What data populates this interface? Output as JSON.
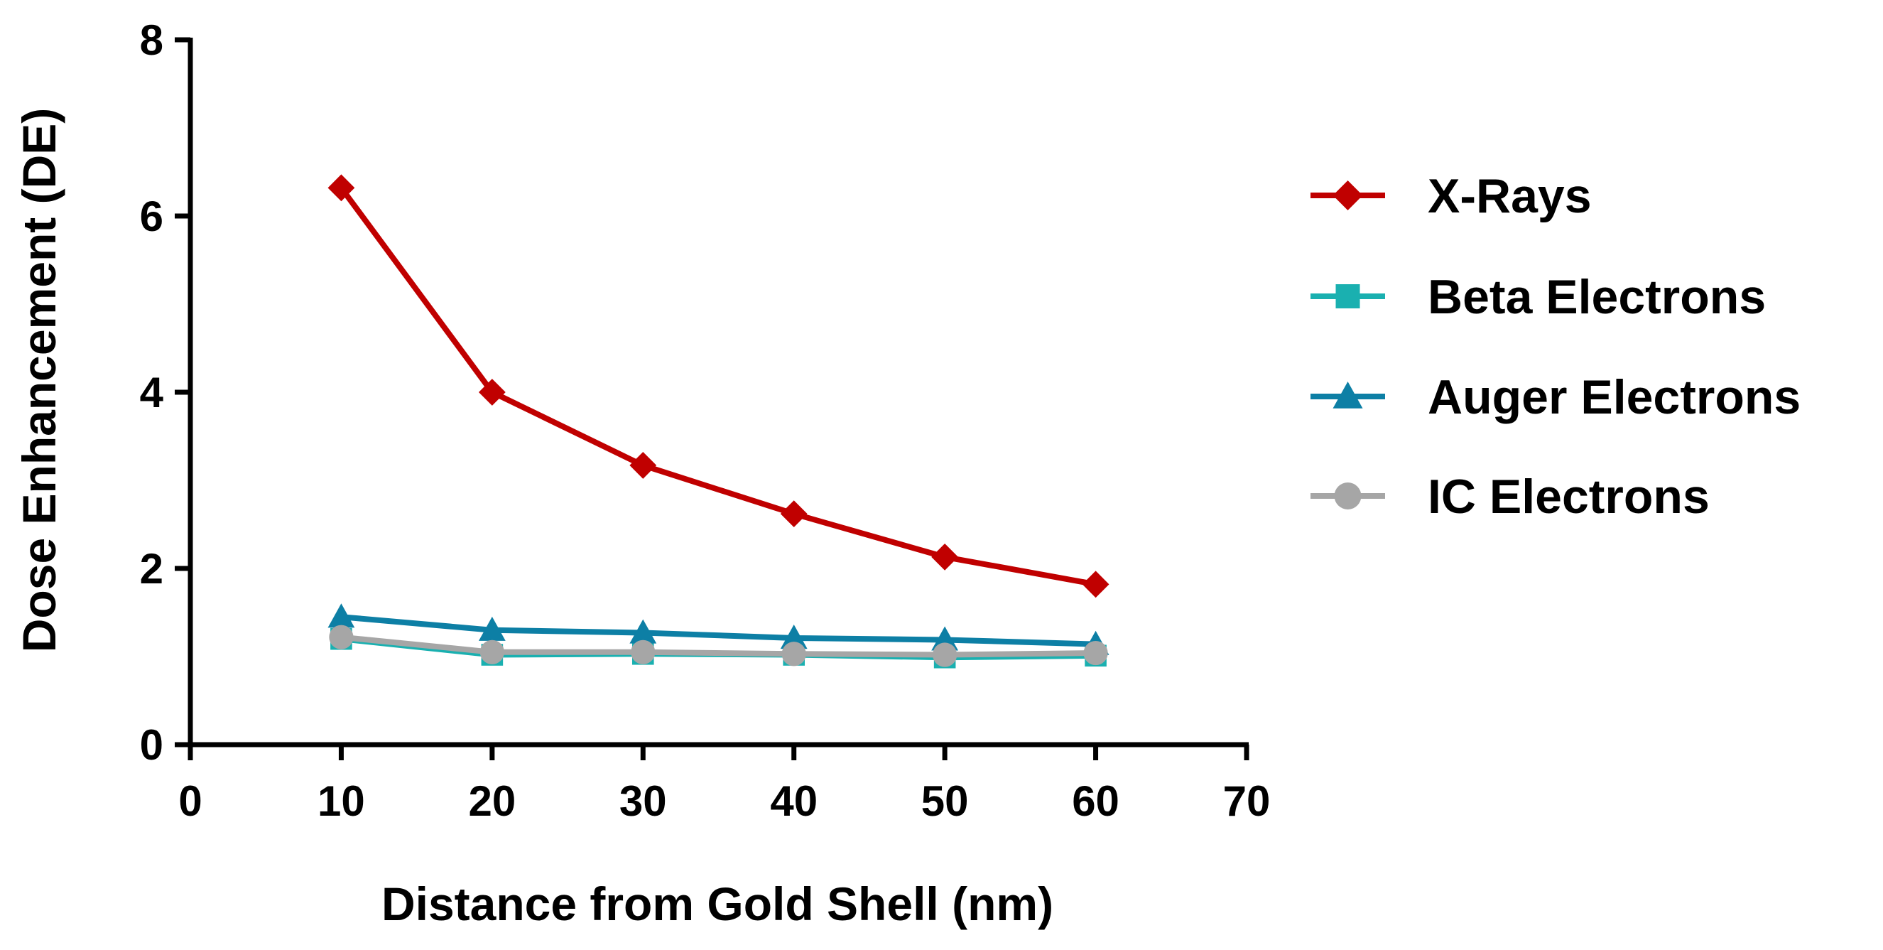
{
  "chart_data": {
    "type": "line",
    "title": "",
    "xlabel": "Distance from Gold Shell (nm)",
    "ylabel": "Dose Enhancement (DE)",
    "xlim": [
      0,
      70
    ],
    "ylim": [
      0,
      8
    ],
    "xticks": [
      "0",
      "10",
      "20",
      "30",
      "40",
      "50",
      "60",
      "70"
    ],
    "yticks": [
      "0",
      "2",
      "4",
      "6",
      "8"
    ],
    "x": [
      10,
      20,
      30,
      40,
      50,
      60
    ],
    "grid": false,
    "legend_position": "right",
    "series": [
      {
        "name": "X-Rays",
        "color": "#c00000",
        "marker": "diamond",
        "values": [
          6.32,
          4.0,
          3.17,
          2.62,
          2.13,
          1.82
        ]
      },
      {
        "name": "Beta Electrons",
        "color": "#1ab0b0",
        "marker": "square",
        "values": [
          1.2,
          1.02,
          1.03,
          1.02,
          0.99,
          1.01
        ]
      },
      {
        "name": "Auger Electrons",
        "color": "#0d7fa5",
        "marker": "triangle",
        "values": [
          1.45,
          1.3,
          1.27,
          1.21,
          1.19,
          1.14
        ]
      },
      {
        "name": "IC Electrons",
        "color": "#a6a6a6",
        "marker": "circle",
        "values": [
          1.22,
          1.05,
          1.05,
          1.03,
          1.02,
          1.04
        ]
      }
    ]
  }
}
